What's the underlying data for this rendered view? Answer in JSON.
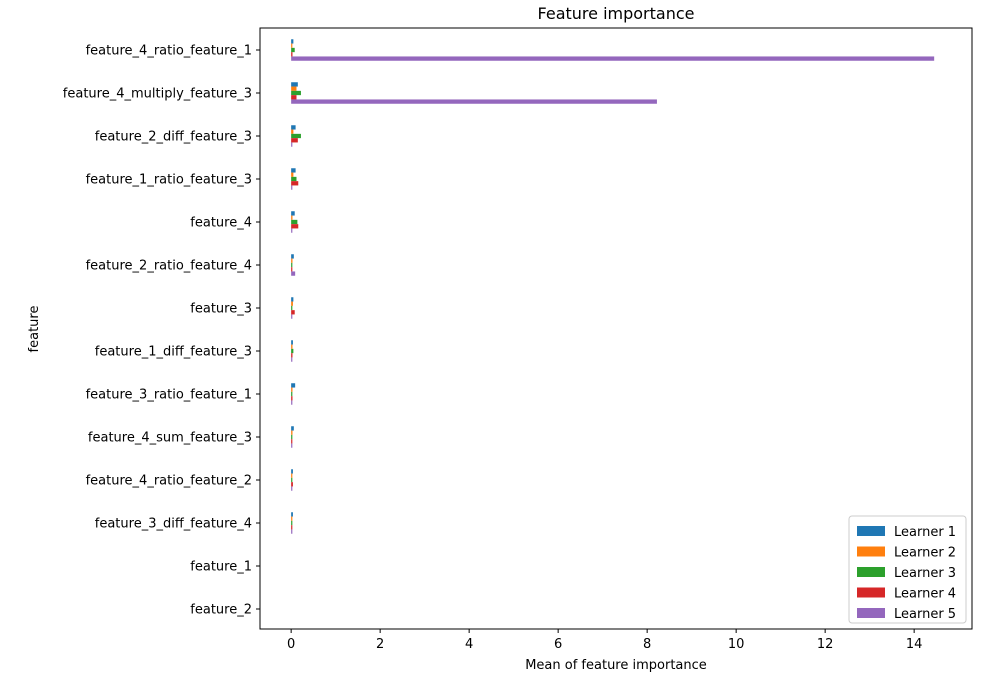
{
  "chart_data": {
    "type": "bar",
    "orientation": "horizontal",
    "title": "Feature importance",
    "xlabel": "Mean of feature importance",
    "ylabel": "feature",
    "xlim": [
      -0.7,
      15.3
    ],
    "xticks": [
      0,
      2,
      4,
      6,
      8,
      10,
      12,
      14
    ],
    "grid": false,
    "legend_position": "bottom-right",
    "categories": [
      "feature_4_ratio_feature_1",
      "feature_4_multiply_feature_3",
      "feature_2_diff_feature_3",
      "feature_1_ratio_feature_3",
      "feature_4",
      "feature_2_ratio_feature_4",
      "feature_3",
      "feature_1_diff_feature_3",
      "feature_3_ratio_feature_1",
      "feature_4_sum_feature_3",
      "feature_4_ratio_feature_2",
      "feature_3_diff_feature_4",
      "feature_1",
      "feature_2"
    ],
    "series": [
      {
        "name": "Learner 1",
        "color": "#1f77b4",
        "values": [
          0.05,
          0.15,
          0.1,
          0.1,
          0.08,
          0.06,
          0.05,
          0.04,
          0.09,
          0.06,
          0.04,
          0.04,
          0.0,
          0.0
        ]
      },
      {
        "name": "Learner 2",
        "color": "#ff7f0e",
        "values": [
          0.02,
          0.12,
          0.05,
          0.05,
          0.03,
          0.03,
          0.04,
          0.03,
          0.03,
          0.03,
          0.02,
          0.02,
          0.0,
          0.0
        ]
      },
      {
        "name": "Learner 3",
        "color": "#2ca02c",
        "values": [
          0.08,
          0.22,
          0.22,
          0.12,
          0.14,
          0.02,
          0.02,
          0.05,
          0.02,
          0.02,
          0.01,
          0.01,
          0.0,
          0.0
        ]
      },
      {
        "name": "Learner 4",
        "color": "#d62728",
        "values": [
          0.03,
          0.12,
          0.15,
          0.16,
          0.16,
          0.02,
          0.08,
          0.03,
          0.03,
          0.01,
          0.04,
          0.02,
          0.0,
          0.0
        ]
      },
      {
        "name": "Learner 5",
        "color": "#9467bd",
        "values": [
          14.45,
          8.22,
          0.02,
          0.02,
          0.02,
          0.09,
          0.01,
          0.01,
          0.01,
          0.01,
          0.01,
          0.01,
          0.0,
          0.0
        ]
      }
    ]
  }
}
